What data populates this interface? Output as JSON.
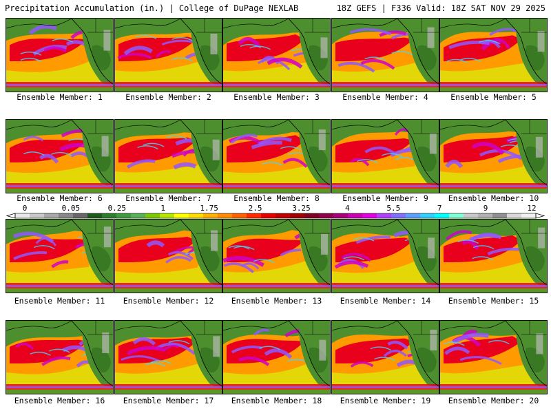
{
  "header": {
    "title": "Precipitation Accumulation (in.) | College of DuPage NEXLAB",
    "run_info": "18Z GEFS | F336 Valid: 18Z SAT NOV 29 2025"
  },
  "legend": {
    "tick_labels": [
      "0",
      "0.05",
      "0.25",
      "1",
      "1.75",
      "2.5",
      "3.25",
      "4",
      "5.5",
      "7",
      "9",
      "12"
    ],
    "colors": [
      "#e8e8e8",
      "#c8c8c8",
      "#a8a8a8",
      "#888888",
      "#686868",
      "#1e5a1e",
      "#2e7d2e",
      "#3f9a3f",
      "#58b058",
      "#7ac800",
      "#b4e600",
      "#ffff00",
      "#ffdd00",
      "#ffb000",
      "#ff8c00",
      "#ff6000",
      "#ff2a00",
      "#e60000",
      "#c00000",
      "#a00000",
      "#800020",
      "#90004a",
      "#a8007a",
      "#c800b0",
      "#e000e0",
      "#b040ff",
      "#8070ff",
      "#5aa0ff",
      "#30d0ff",
      "#00ffff",
      "#7fffd4",
      "#c8c8c8",
      "#b0b0b0",
      "#909090",
      "#d8d8d8",
      "#f0f0f0"
    ]
  },
  "members": [
    {
      "label": "Ensemble Member: 1"
    },
    {
      "label": "Ensemble Member: 2"
    },
    {
      "label": "Ensemble Member: 3"
    },
    {
      "label": "Ensemble Member: 4"
    },
    {
      "label": "Ensemble Member: 5"
    },
    {
      "label": "Ensemble Member: 6"
    },
    {
      "label": "Ensemble Member: 7"
    },
    {
      "label": "Ensemble Member: 8"
    },
    {
      "label": "Ensemble Member: 9"
    },
    {
      "label": "Ensemble Member: 10"
    },
    {
      "label": "Ensemble Member: 11"
    },
    {
      "label": "Ensemble Member: 12"
    },
    {
      "label": "Ensemble Member: 13"
    },
    {
      "label": "Ensemble Member: 14"
    },
    {
      "label": "Ensemble Member: 15"
    },
    {
      "label": "Ensemble Member: 16"
    },
    {
      "label": "Ensemble Member: 17"
    },
    {
      "label": "Ensemble Member: 18"
    },
    {
      "label": "Ensemble Member: 19"
    },
    {
      "label": "Ensemble Member: 20"
    }
  ],
  "palette": {
    "land": "#4d8f2e",
    "land_dark": "#2f6b1e",
    "yellow": "#ffe400",
    "orange": "#ff9a00",
    "red": "#e8001c",
    "darkred": "#9a0020",
    "magenta": "#d000c8",
    "purple": "#9058ff",
    "cyan": "#40d8ff",
    "gray": "#b8b8b8"
  }
}
